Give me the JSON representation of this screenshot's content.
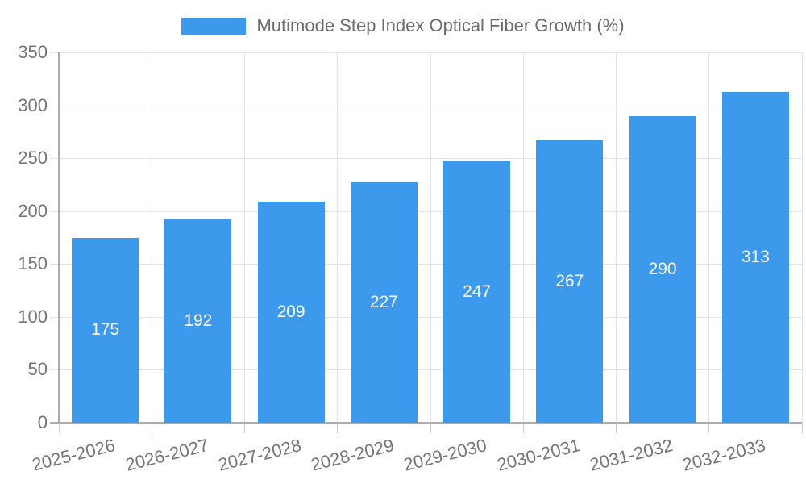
{
  "chart_data": {
    "type": "bar",
    "legend_label": "Mutimode Step Index Optical Fiber Growth (%)",
    "legend_position": "top-center",
    "categories": [
      "2025-2026",
      "2026-2027",
      "2027-2028",
      "2028-2029",
      "2029-2030",
      "2030-2031",
      "2031-2032",
      "2032-2033"
    ],
    "values": [
      175,
      192,
      209,
      227,
      247,
      267,
      290,
      313
    ],
    "yticks": [
      0,
      50,
      100,
      150,
      200,
      250,
      300,
      350
    ],
    "ylim": [
      0,
      350
    ],
    "ytick_step": 50,
    "grid": true,
    "x_tick_rotation_deg": -14,
    "colors": {
      "bar": "#3C99EC",
      "value_label": "#FFFFFF",
      "tick_label": "#757575",
      "legend_text": "#6B6B6B",
      "gridline": "#E2E2E2",
      "axis_line": "#ADADAD",
      "tick_mark": "#CCCCCC",
      "background": "#FFFFFF"
    }
  }
}
